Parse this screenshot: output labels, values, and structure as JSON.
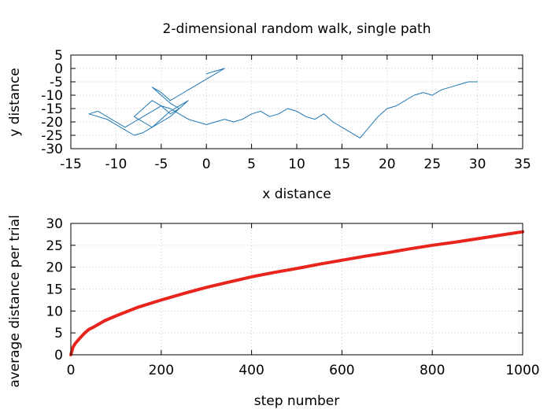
{
  "chart_data": [
    {
      "type": "line",
      "title": "2-dimensional random walk, single path",
      "xlabel": "x distance",
      "ylabel": "y distance",
      "xlim": [
        -15,
        35
      ],
      "ylim": [
        -30,
        5
      ],
      "xticks": [
        -15,
        -10,
        -5,
        0,
        5,
        10,
        15,
        20,
        25,
        30,
        35
      ],
      "yticks": [
        -30,
        -25,
        -20,
        -15,
        -10,
        -5,
        0,
        5
      ],
      "grid": true,
      "series_color": "#1f77b4",
      "series": [
        {
          "x": [
            0,
            1,
            2,
            1,
            0,
            -1,
            -2,
            -3,
            -4,
            -5,
            -6,
            -5,
            -4,
            -3,
            -4,
            -5,
            -6,
            -7,
            -8,
            -7,
            -6,
            -5,
            -4,
            -3,
            -2,
            -3,
            -4,
            -5,
            -6,
            -7,
            -8,
            -9,
            -10,
            -11,
            -12,
            -13,
            -12,
            -11,
            -10,
            -9,
            -8,
            -7,
            -6,
            -5,
            -4,
            -3,
            -2,
            -1,
            0,
            1,
            2,
            3,
            4,
            5,
            6,
            7,
            8,
            9,
            10,
            11,
            12,
            13,
            14,
            15,
            16,
            17,
            18,
            19,
            20,
            21,
            22,
            23,
            24,
            25,
            26,
            27,
            28,
            29,
            30
          ],
          "y": [
            -2,
            -1,
            0,
            -2,
            -4,
            -6,
            -8,
            -10,
            -12,
            -9,
            -7,
            -10,
            -13,
            -15,
            -17,
            -14,
            -12,
            -15,
            -18,
            -20,
            -22,
            -19,
            -16,
            -14,
            -12,
            -15,
            -18,
            -20,
            -22,
            -24,
            -25,
            -23,
            -21,
            -19,
            -18,
            -17,
            -16,
            -18,
            -20,
            -22,
            -20,
            -18,
            -16,
            -14,
            -15,
            -17,
            -19,
            -20,
            -21,
            -20,
            -19,
            -20,
            -19,
            -17,
            -16,
            -18,
            -17,
            -15,
            -16,
            -18,
            -19,
            -17,
            -20,
            -22,
            -24,
            -26,
            -22,
            -18,
            -15,
            -14,
            -12,
            -10,
            -9,
            -10,
            -8,
            -7,
            -6,
            -5,
            -5
          ]
        }
      ]
    },
    {
      "type": "line",
      "title": "",
      "xlabel": "step number",
      "ylabel": "average distance per trial",
      "xlim": [
        0,
        1000
      ],
      "ylim": [
        0,
        30
      ],
      "xticks": [
        0,
        200,
        400,
        600,
        800,
        1000
      ],
      "yticks": [
        0,
        5,
        10,
        15,
        20,
        25,
        30
      ],
      "grid": true,
      "series_color": "#e8251d",
      "series": [
        {
          "x": [
            0,
            5,
            10,
            20,
            30,
            40,
            50,
            75,
            100,
            150,
            200,
            250,
            300,
            350,
            400,
            450,
            500,
            550,
            600,
            650,
            700,
            750,
            800,
            850,
            900,
            950,
            1000
          ],
          "y": [
            0,
            1.8,
            2.6,
            3.8,
            4.9,
            5.8,
            6.3,
            7.8,
            8.9,
            10.9,
            12.5,
            14.0,
            15.4,
            16.6,
            17.8,
            18.8,
            19.7,
            20.7,
            21.6,
            22.5,
            23.3,
            24.2,
            25.0,
            25.7,
            26.5,
            27.3,
            28.1
          ]
        }
      ]
    }
  ]
}
